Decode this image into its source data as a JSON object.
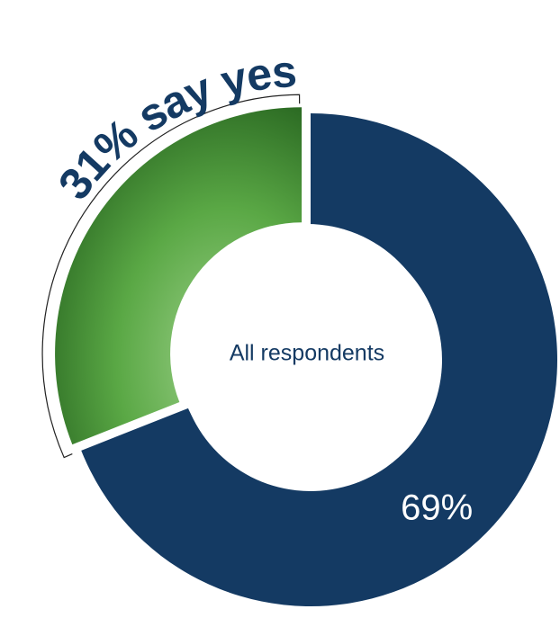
{
  "chart_data": {
    "type": "donut",
    "categories": [
      null,
      null
    ],
    "values": [
      31,
      69
    ],
    "value_labels": [
      "31% say yes",
      "69%"
    ],
    "colors": [
      "#5aa845",
      "#143a63"
    ],
    "center_text": "All respondents"
  }
}
